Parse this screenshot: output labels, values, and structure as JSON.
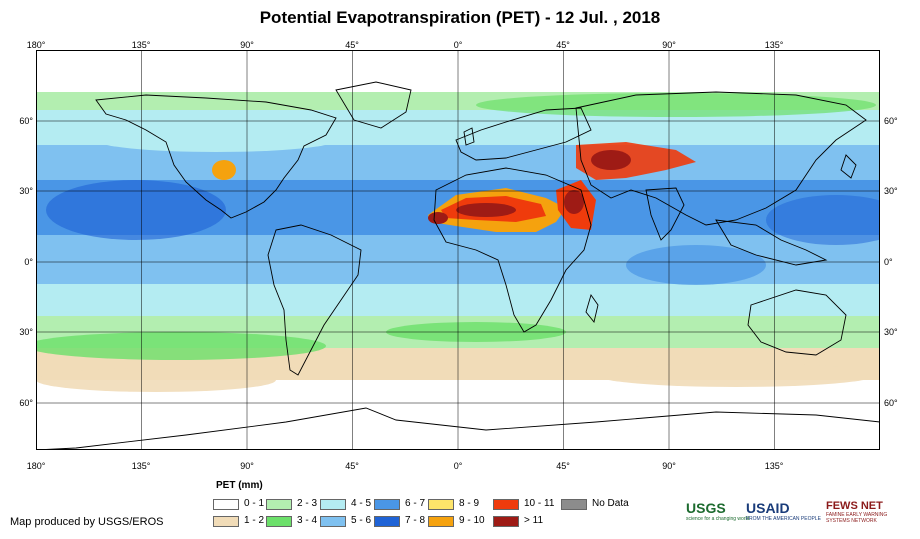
{
  "title": "Potential Evapotranspiration (PET) - 12 Jul. , 2018",
  "map": {
    "lon_ticks": [
      "180°",
      "135°",
      "90°",
      "45°",
      "0°",
      "45°",
      "90°",
      "135°"
    ],
    "lat_ticks": [
      "60°",
      "30°",
      "0°",
      "30°",
      "60°"
    ],
    "lon_range": [
      -180,
      180
    ],
    "lat_range": [
      -80,
      90
    ]
  },
  "legend": {
    "title": "PET (mm)",
    "classes": [
      {
        "label": "0 - 1",
        "color": "#ffffff"
      },
      {
        "label": "1 - 2",
        "color": "#f1dcb8"
      },
      {
        "label": "2 - 3",
        "color": "#b3eeb0"
      },
      {
        "label": "3 - 4",
        "color": "#6ce06a"
      },
      {
        "label": "4 - 5",
        "color": "#b4ecf2"
      },
      {
        "label": "5 - 6",
        "color": "#7fc1f0"
      },
      {
        "label": "6 - 7",
        "color": "#4a96e6"
      },
      {
        "label": "7 - 8",
        "color": "#1f63d6"
      },
      {
        "label": "8 - 9",
        "color": "#fde46a"
      },
      {
        "label": "9 - 10",
        "color": "#f5a20e"
      },
      {
        "label": "10 - 11",
        "color": "#ef3b0c"
      },
      {
        "label": "> 11",
        "color": "#9e1b15"
      },
      {
        "label": "No Data",
        "color": "#8c8c8c"
      }
    ]
  },
  "credit": "Map produced by USGS/EROS",
  "logos": {
    "usgs": "USGS",
    "usgs_tag": "science for a changing world",
    "usaid": "USAID",
    "usaid_tag": "FROM THE AMERICAN PEOPLE",
    "fews": "FEWS NET",
    "fews_tag": "FAMINE EARLY WARNING SYSTEMS NETWORK"
  }
}
